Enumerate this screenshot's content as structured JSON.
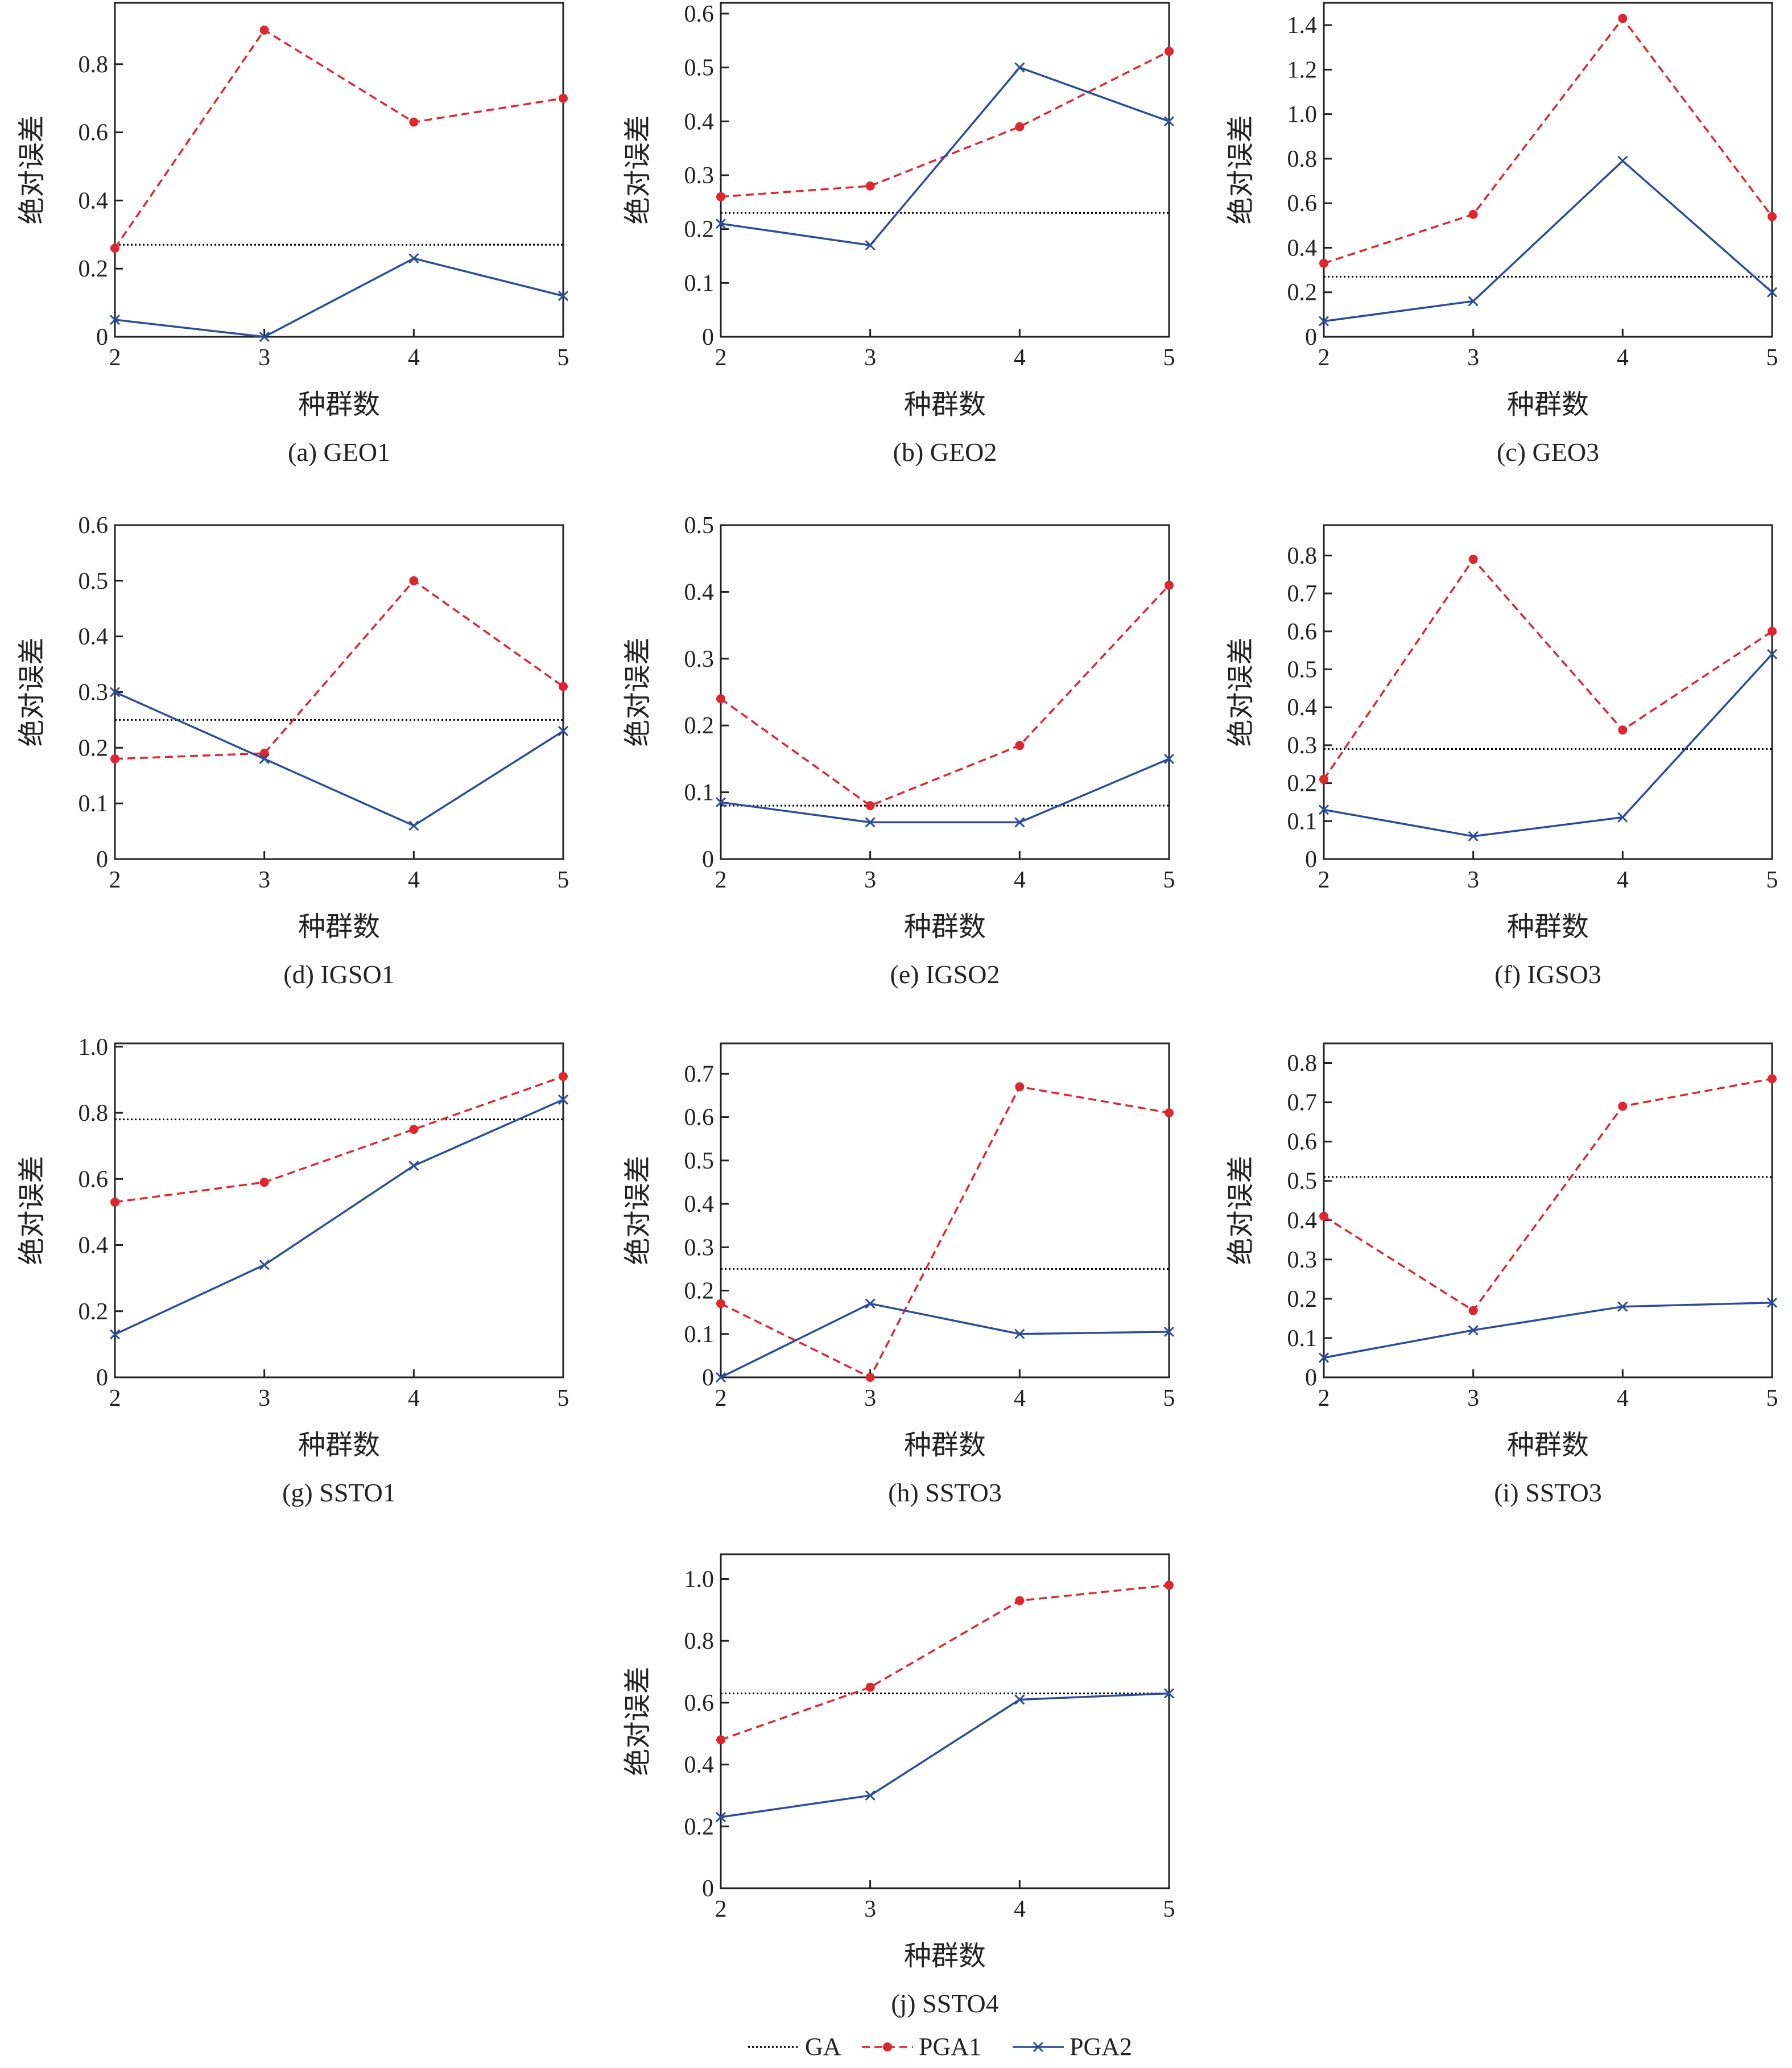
{
  "colors": {
    "GA": "#000000",
    "PGA1": "#e0262d",
    "PGA2": "#2b4c9b"
  },
  "legend": [
    "GA",
    "PGA1",
    "PGA2"
  ],
  "chart_data": [
    {
      "type": "line",
      "title": "(a) GEO1",
      "xlabel": "种群数",
      "ylabel": "绝对误差",
      "x": [
        2,
        3,
        4,
        5
      ],
      "ylim": [
        0,
        0.98
      ],
      "yticks": [
        0,
        0.2,
        0.4,
        0.6,
        0.8
      ],
      "series": [
        {
          "name": "GA",
          "values": [
            0.27,
            0.27,
            0.27,
            0.27
          ]
        },
        {
          "name": "PGA1",
          "values": [
            0.26,
            0.9,
            0.63,
            0.7
          ]
        },
        {
          "name": "PGA2",
          "values": [
            0.05,
            0.0,
            0.23,
            0.12
          ]
        }
      ]
    },
    {
      "type": "line",
      "title": "(b) GEO2",
      "xlabel": "种群数",
      "ylabel": "绝对误差",
      "x": [
        2,
        3,
        4,
        5
      ],
      "ylim": [
        0,
        0.62
      ],
      "yticks": [
        0,
        0.1,
        0.2,
        0.3,
        0.4,
        0.5,
        0.6
      ],
      "series": [
        {
          "name": "GA",
          "values": [
            0.23,
            0.23,
            0.23,
            0.23
          ]
        },
        {
          "name": "PGA1",
          "values": [
            0.26,
            0.28,
            0.39,
            0.53
          ]
        },
        {
          "name": "PGA2",
          "values": [
            0.21,
            0.17,
            0.5,
            0.4
          ]
        }
      ]
    },
    {
      "type": "line",
      "title": "(c) GEO3",
      "xlabel": "种群数",
      "ylabel": "绝对误差",
      "x": [
        2,
        3,
        4,
        5
      ],
      "ylim": [
        0,
        1.5
      ],
      "yticks": [
        0,
        0.2,
        0.4,
        0.6,
        0.8,
        1.0,
        1.2,
        1.4
      ],
      "series": [
        {
          "name": "GA",
          "values": [
            0.27,
            0.27,
            0.27,
            0.27
          ]
        },
        {
          "name": "PGA1",
          "values": [
            0.33,
            0.55,
            1.43,
            0.54
          ]
        },
        {
          "name": "PGA2",
          "values": [
            0.07,
            0.16,
            0.79,
            0.2
          ]
        }
      ]
    },
    {
      "type": "line",
      "title": "(d) IGSO1",
      "xlabel": "种群数",
      "ylabel": "绝对误差",
      "x": [
        2,
        3,
        4,
        5
      ],
      "ylim": [
        0,
        0.6
      ],
      "yticks": [
        0,
        0.1,
        0.2,
        0.3,
        0.4,
        0.5,
        0.6
      ],
      "series": [
        {
          "name": "GA",
          "values": [
            0.25,
            0.25,
            0.25,
            0.25
          ]
        },
        {
          "name": "PGA1",
          "values": [
            0.18,
            0.19,
            0.5,
            0.31
          ]
        },
        {
          "name": "PGA2",
          "values": [
            0.3,
            0.18,
            0.06,
            0.23
          ]
        }
      ]
    },
    {
      "type": "line",
      "title": "(e) IGSO2",
      "xlabel": "种群数",
      "ylabel": "绝对误差",
      "x": [
        2,
        3,
        4,
        5
      ],
      "ylim": [
        0,
        0.5
      ],
      "yticks": [
        0,
        0.1,
        0.2,
        0.3,
        0.4,
        0.5
      ],
      "series": [
        {
          "name": "GA",
          "values": [
            0.08,
            0.08,
            0.08,
            0.08
          ]
        },
        {
          "name": "PGA1",
          "values": [
            0.24,
            0.08,
            0.17,
            0.41
          ]
        },
        {
          "name": "PGA2",
          "values": [
            0.085,
            0.055,
            0.055,
            0.15
          ]
        }
      ]
    },
    {
      "type": "line",
      "title": "(f) IGSO3",
      "xlabel": "种群数",
      "ylabel": "绝对误差",
      "x": [
        2,
        3,
        4,
        5
      ],
      "ylim": [
        0,
        0.88
      ],
      "yticks": [
        0,
        0.1,
        0.2,
        0.3,
        0.4,
        0.5,
        0.6,
        0.7,
        0.8
      ],
      "series": [
        {
          "name": "GA",
          "values": [
            0.29,
            0.29,
            0.29,
            0.29
          ]
        },
        {
          "name": "PGA1",
          "values": [
            0.21,
            0.79,
            0.34,
            0.6
          ]
        },
        {
          "name": "PGA2",
          "values": [
            0.13,
            0.06,
            0.11,
            0.54
          ]
        }
      ]
    },
    {
      "type": "line",
      "title": "(g) SSTO1",
      "xlabel": "种群数",
      "ylabel": "绝对误差",
      "x": [
        2,
        3,
        4,
        5
      ],
      "ylim": [
        0,
        1.01
      ],
      "yticks": [
        0,
        0.2,
        0.4,
        0.6,
        0.8,
        1.0
      ],
      "series": [
        {
          "name": "GA",
          "values": [
            0.78,
            0.78,
            0.78,
            0.78
          ]
        },
        {
          "name": "PGA1",
          "values": [
            0.53,
            0.59,
            0.75,
            0.91
          ]
        },
        {
          "name": "PGA2",
          "values": [
            0.13,
            0.34,
            0.64,
            0.84
          ]
        }
      ]
    },
    {
      "type": "line",
      "title": "(h) SSTO3",
      "xlabel": "种群数",
      "ylabel": "绝对误差",
      "x": [
        2,
        3,
        4,
        5
      ],
      "ylim": [
        0,
        0.77
      ],
      "yticks": [
        0,
        0.1,
        0.2,
        0.3,
        0.4,
        0.5,
        0.6,
        0.7
      ],
      "series": [
        {
          "name": "GA",
          "values": [
            0.25,
            0.25,
            0.25,
            0.25
          ]
        },
        {
          "name": "PGA1",
          "values": [
            0.17,
            0.0,
            0.67,
            0.61
          ]
        },
        {
          "name": "PGA2",
          "values": [
            0.0,
            0.17,
            0.1,
            0.105
          ]
        }
      ]
    },
    {
      "type": "line",
      "title": "(i) SSTO3",
      "xlabel": "种群数",
      "ylabel": "绝对误差",
      "x": [
        2,
        3,
        4,
        5
      ],
      "ylim": [
        0,
        0.85
      ],
      "yticks": [
        0,
        0.1,
        0.2,
        0.3,
        0.4,
        0.5,
        0.6,
        0.7,
        0.8
      ],
      "series": [
        {
          "name": "GA",
          "values": [
            0.51,
            0.51,
            0.51,
            0.51
          ]
        },
        {
          "name": "PGA1",
          "values": [
            0.41,
            0.17,
            0.69,
            0.76
          ]
        },
        {
          "name": "PGA2",
          "values": [
            0.05,
            0.12,
            0.18,
            0.19
          ]
        }
      ]
    },
    {
      "type": "line",
      "title": "(j) SSTO4",
      "xlabel": "种群数",
      "ylabel": "绝对误差",
      "x": [
        2,
        3,
        4,
        5
      ],
      "ylim": [
        0,
        1.08
      ],
      "yticks": [
        0,
        0.2,
        0.4,
        0.6,
        0.8,
        1.0
      ],
      "series": [
        {
          "name": "GA",
          "values": [
            0.63,
            0.63,
            0.63,
            0.63
          ]
        },
        {
          "name": "PGA1",
          "values": [
            0.48,
            0.65,
            0.93,
            0.98
          ]
        },
        {
          "name": "PGA2",
          "values": [
            0.23,
            0.3,
            0.61,
            0.63
          ]
        }
      ]
    }
  ]
}
